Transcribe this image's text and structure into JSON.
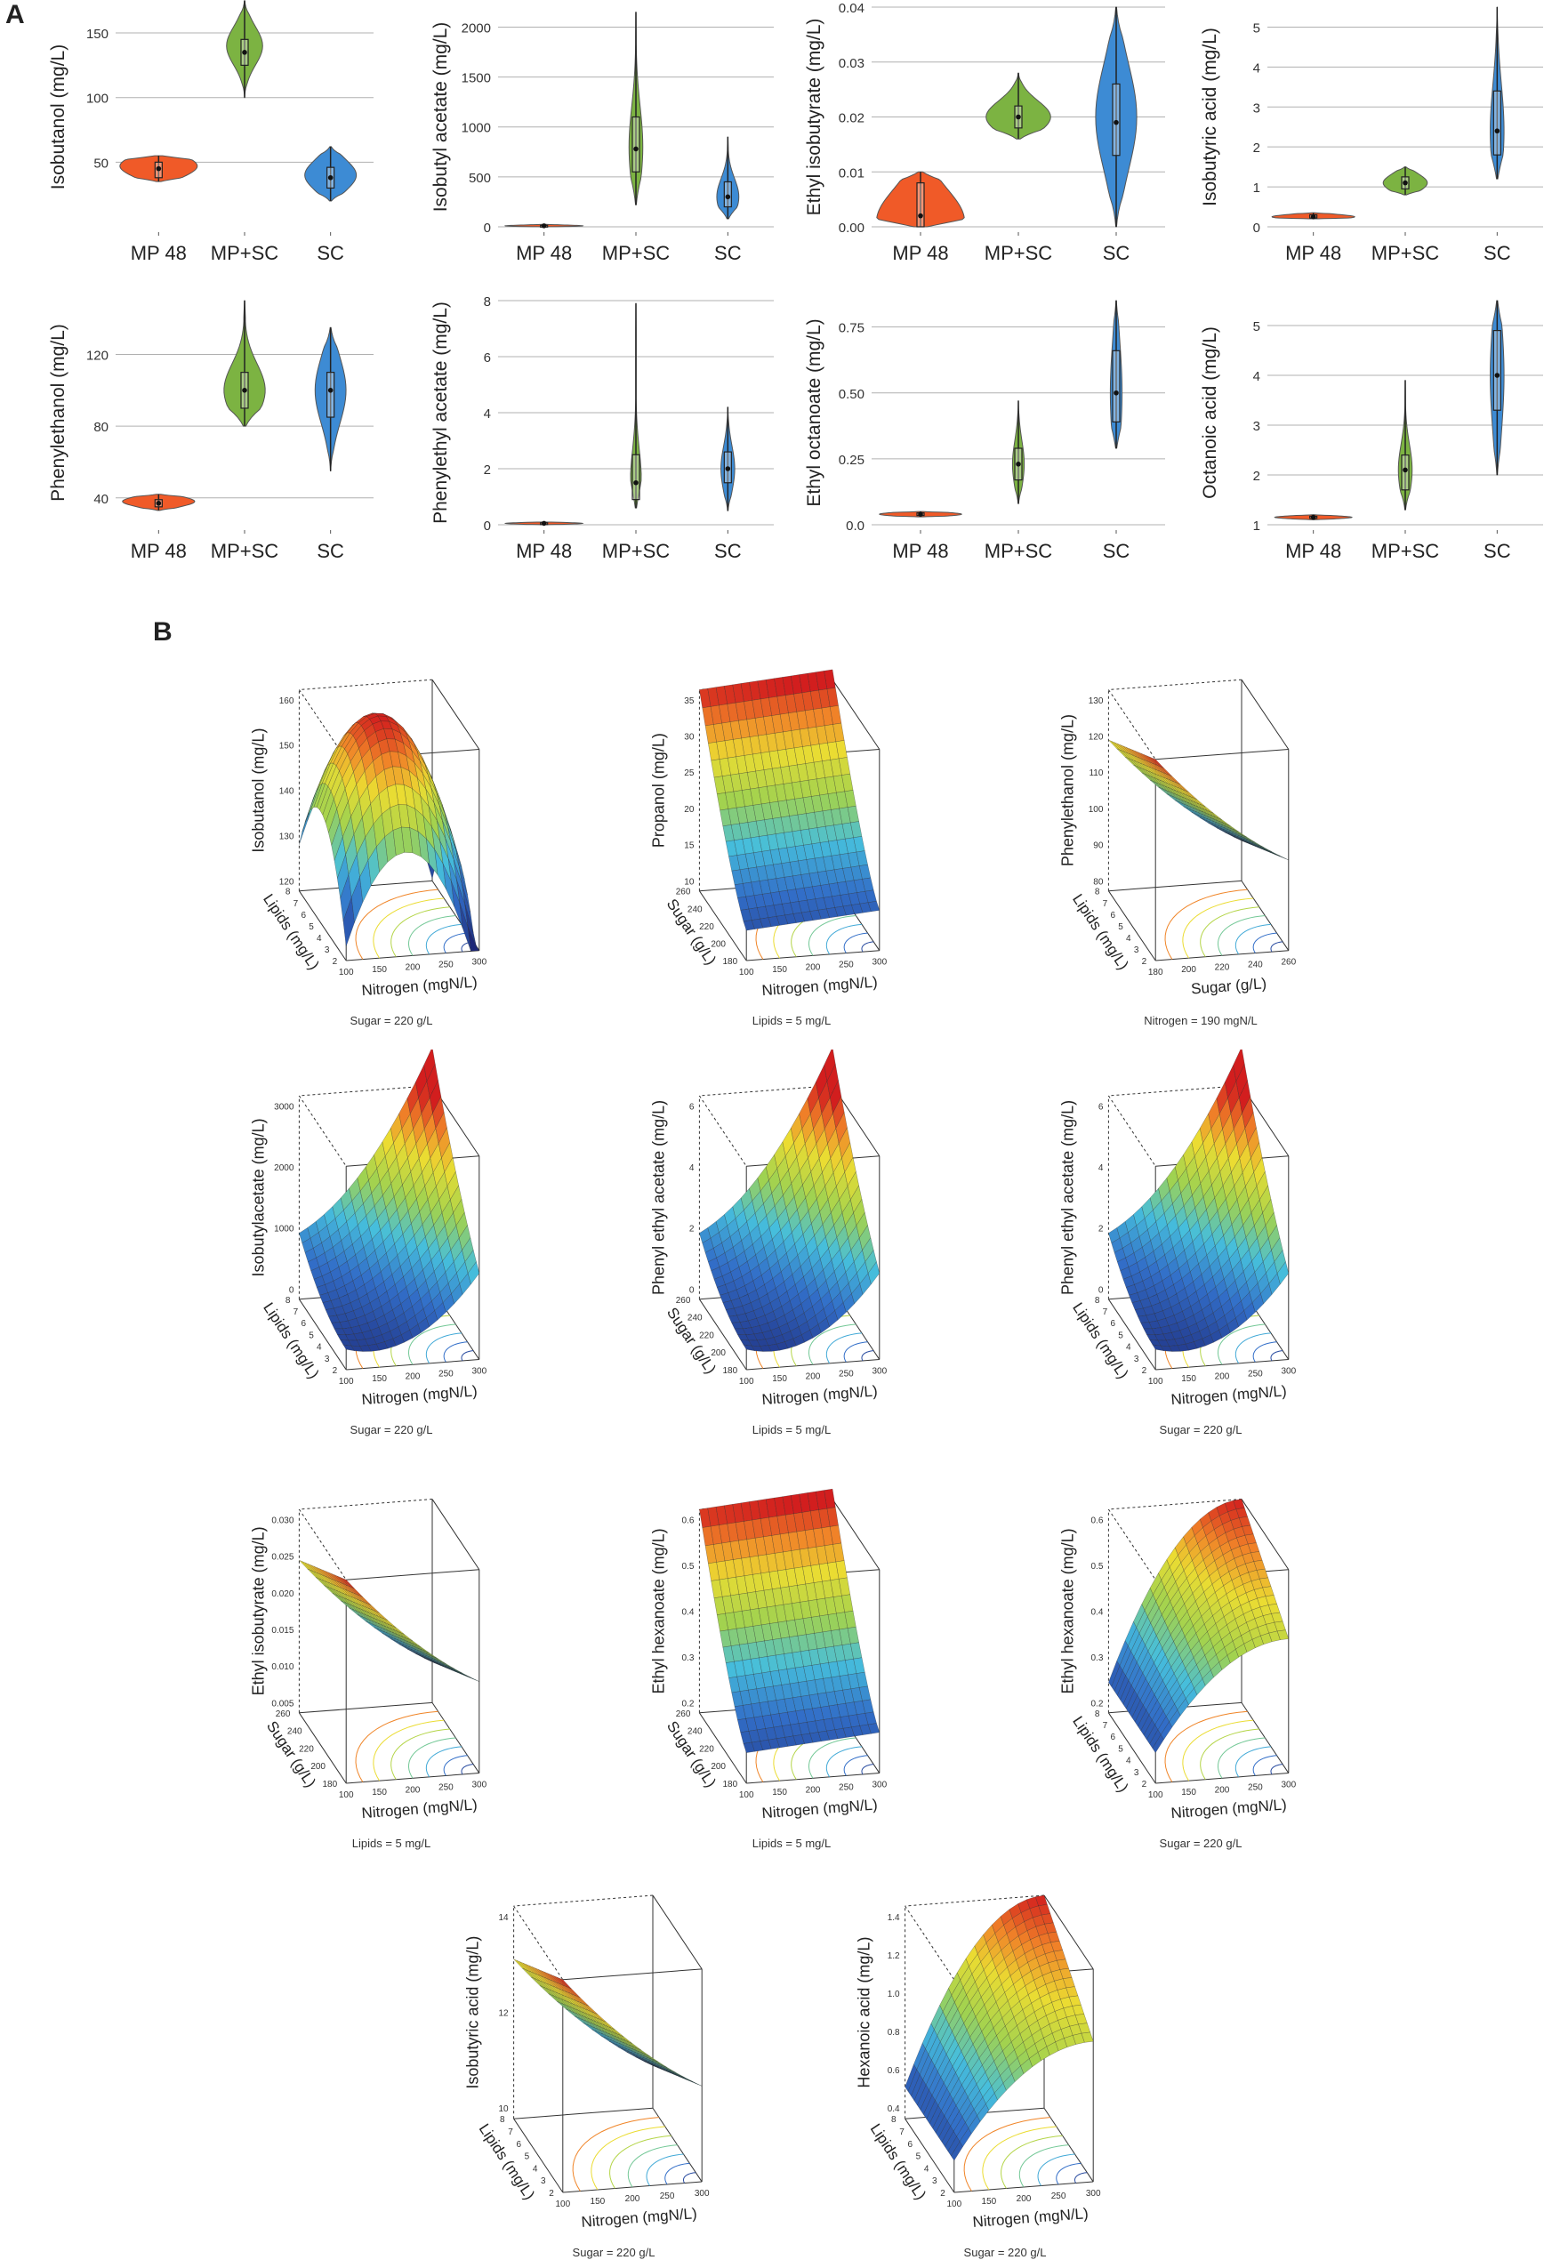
{
  "figure": {
    "panel_a": "A",
    "panel_b": "B"
  },
  "colors": {
    "mp48": "#f05a28",
    "mpsc": "#7cb342",
    "sc": "#3d8bd4",
    "grid": "#b0b0b0"
  },
  "chart_data": [
    {
      "type": "violin",
      "id": "isobutanol",
      "ylabel": "Isobutanol (mg/L)",
      "categories": [
        "MP 48",
        "MP+SC",
        "SC"
      ],
      "ylim": [
        0,
        170
      ],
      "yticks": [
        {
          "v": 50,
          "t": "50"
        },
        {
          "v": 100,
          "t": "100"
        },
        {
          "v": 150,
          "t": "150"
        }
      ],
      "groups": [
        {
          "median": 45,
          "q1": 38,
          "q3": 50,
          "min": 35,
          "max": 55,
          "w": 0.3,
          "mode": 47
        },
        {
          "median": 135,
          "q1": 125,
          "q3": 145,
          "min": 100,
          "max": 175,
          "w": 0.14,
          "mode": 140
        },
        {
          "median": 38,
          "q1": 30,
          "q3": 46,
          "min": 20,
          "max": 62,
          "w": 0.2,
          "mode": 40
        }
      ]
    },
    {
      "type": "violin",
      "id": "isobutylacetate",
      "ylabel": "Isobutyl acetate (mg/L)",
      "categories": [
        "MP 48",
        "MP+SC",
        "SC"
      ],
      "ylim": [
        0,
        2200
      ],
      "yticks": [
        {
          "v": 0,
          "t": "0"
        },
        {
          "v": 500,
          "t": "500"
        },
        {
          "v": 1000,
          "t": "1000"
        },
        {
          "v": 1500,
          "t": "1500"
        },
        {
          "v": 2000,
          "t": "2000"
        }
      ],
      "groups": [
        {
          "median": 10,
          "q1": 5,
          "q3": 15,
          "min": 0,
          "max": 25,
          "w": 0.28,
          "mode": 10
        },
        {
          "median": 780,
          "q1": 550,
          "q3": 1100,
          "min": 220,
          "max": 2150,
          "w": 0.05,
          "mode": 800
        },
        {
          "median": 300,
          "q1": 200,
          "q3": 450,
          "min": 80,
          "max": 900,
          "w": 0.08,
          "mode": 300
        }
      ]
    },
    {
      "type": "violin",
      "id": "ethylisobutyrate",
      "ylabel": "Ethyl isobutyrate (mg/L)",
      "categories": [
        "MP 48",
        "MP+SC",
        "SC"
      ],
      "ylim": [
        0,
        0.04
      ],
      "yticks": [
        {
          "v": 0,
          "t": "0.00"
        },
        {
          "v": 0.01,
          "t": "0.01"
        },
        {
          "v": 0.02,
          "t": "0.02"
        },
        {
          "v": 0.03,
          "t": "0.03"
        },
        {
          "v": 0.04,
          "t": "0.04"
        }
      ],
      "groups": [
        {
          "median": 0.002,
          "q1": 0.0,
          "q3": 0.008,
          "min": 0.0,
          "max": 0.01,
          "w": 0.3,
          "mode": 0.001
        },
        {
          "median": 0.02,
          "q1": 0.018,
          "q3": 0.022,
          "min": 0.016,
          "max": 0.028,
          "w": 0.22,
          "mode": 0.02
        },
        {
          "median": 0.019,
          "q1": 0.013,
          "q3": 0.026,
          "min": 0.0,
          "max": 0.04,
          "w": 0.14,
          "mode": 0.02
        }
      ]
    },
    {
      "type": "violin",
      "id": "isobutyricacid",
      "ylabel": "Isobutyric acid (mg/L)",
      "categories": [
        "MP 48",
        "MP+SC",
        "SC"
      ],
      "ylim": [
        0,
        5.5
      ],
      "yticks": [
        {
          "v": 0,
          "t": "0"
        },
        {
          "v": 1,
          "t": "1"
        },
        {
          "v": 2,
          "t": "2"
        },
        {
          "v": 3,
          "t": "3"
        },
        {
          "v": 4,
          "t": "4"
        },
        {
          "v": 5,
          "t": "5"
        }
      ],
      "groups": [
        {
          "median": 0.25,
          "q1": 0.22,
          "q3": 0.3,
          "min": 0.2,
          "max": 0.35,
          "w": 0.3,
          "mode": 0.25
        },
        {
          "median": 1.1,
          "q1": 0.95,
          "q3": 1.25,
          "min": 0.8,
          "max": 1.5,
          "w": 0.16,
          "mode": 1.1
        },
        {
          "median": 2.4,
          "q1": 1.8,
          "q3": 3.4,
          "min": 1.2,
          "max": 5.5,
          "w": 0.05,
          "mode": 2.4
        }
      ]
    },
    {
      "type": "violin",
      "id": "phenylethanol",
      "ylabel": "Phenylethanol (mg/L)",
      "categories": [
        "MP 48",
        "MP+SC",
        "SC"
      ],
      "ylim": [
        25,
        150
      ],
      "yticks": [
        {
          "v": 40,
          "t": "40"
        },
        {
          "v": 80,
          "t": "80"
        },
        {
          "v": 120,
          "t": "120"
        }
      ],
      "groups": [
        {
          "median": 37,
          "q1": 35,
          "q3": 39,
          "min": 33,
          "max": 42,
          "w": 0.28,
          "mode": 38
        },
        {
          "median": 100,
          "q1": 90,
          "q3": 110,
          "min": 80,
          "max": 150,
          "w": 0.16,
          "mode": 100
        },
        {
          "median": 100,
          "q1": 85,
          "q3": 110,
          "min": 55,
          "max": 135,
          "w": 0.12,
          "mode": 100
        }
      ]
    },
    {
      "type": "violin",
      "id": "phenylethylacetate",
      "ylabel": "Phenylethyl acetate (mg/L)",
      "categories": [
        "MP 48",
        "MP+SC",
        "SC"
      ],
      "ylim": [
        0,
        8
      ],
      "yticks": [
        {
          "v": 0,
          "t": "0"
        },
        {
          "v": 2,
          "t": "2"
        },
        {
          "v": 4,
          "t": "4"
        },
        {
          "v": 6,
          "t": "6"
        },
        {
          "v": 8,
          "t": "8"
        }
      ],
      "groups": [
        {
          "median": 0.05,
          "q1": 0.03,
          "q3": 0.07,
          "min": 0.0,
          "max": 0.1,
          "w": 0.28,
          "mode": 0.05
        },
        {
          "median": 1.5,
          "q1": 0.9,
          "q3": 2.5,
          "min": 0.6,
          "max": 7.9,
          "w": 0.04,
          "mode": 1.5
        },
        {
          "median": 2.0,
          "q1": 1.5,
          "q3": 2.6,
          "min": 0.5,
          "max": 4.2,
          "w": 0.05,
          "mode": 2.0
        }
      ]
    },
    {
      "type": "violin",
      "id": "ethyloctanoate",
      "ylabel": "Ethyl octanoate (mg/L)",
      "categories": [
        "MP 48",
        "MP+SC",
        "SC"
      ],
      "ylim": [
        0,
        0.85
      ],
      "yticks": [
        {
          "v": 0,
          "t": "0.0"
        },
        {
          "v": 0.25,
          "t": "0.25"
        },
        {
          "v": 0.5,
          "t": "0.50"
        },
        {
          "v": 0.75,
          "t": "0.75"
        }
      ],
      "groups": [
        {
          "median": 0.04,
          "q1": 0.035,
          "q3": 0.045,
          "min": 0.03,
          "max": 0.05,
          "w": 0.28,
          "mode": 0.04
        },
        {
          "median": 0.23,
          "q1": 0.17,
          "q3": 0.29,
          "min": 0.08,
          "max": 0.47,
          "w": 0.04,
          "mode": 0.23
        },
        {
          "median": 0.5,
          "q1": 0.39,
          "q3": 0.66,
          "min": 0.29,
          "max": 0.85,
          "w": 0.04,
          "mode": 0.5
        }
      ]
    },
    {
      "type": "violin",
      "id": "octanoicacid",
      "ylabel": "Octanoic acid (mg/L)",
      "categories": [
        "MP 48",
        "MP+SC",
        "SC"
      ],
      "ylim": [
        1,
        5.5
      ],
      "yticks": [
        {
          "v": 1,
          "t": "1"
        },
        {
          "v": 2,
          "t": "2"
        },
        {
          "v": 3,
          "t": "3"
        },
        {
          "v": 4,
          "t": "4"
        },
        {
          "v": 5,
          "t": "5"
        }
      ],
      "groups": [
        {
          "median": 1.15,
          "q1": 1.13,
          "q3": 1.17,
          "min": 1.1,
          "max": 1.2,
          "w": 0.28,
          "mode": 1.15
        },
        {
          "median": 2.1,
          "q1": 1.7,
          "q3": 2.4,
          "min": 1.3,
          "max": 3.9,
          "w": 0.05,
          "mode": 2.1
        },
        {
          "median": 4.0,
          "q1": 3.3,
          "q3": 4.9,
          "min": 2.0,
          "max": 5.5,
          "w": 0.05,
          "mode": 4.0
        }
      ]
    },
    {
      "type": "surface",
      "id": "s_isobutanol",
      "zlabel": "Isobutanol (mg/L)",
      "xlabel": "Nitrogen (mgN/L)",
      "ylabel": "Lipids (mg/L)",
      "note": "Sugar = 220 g/L",
      "xticks": [
        "100",
        "150",
        "200",
        "250",
        "300"
      ],
      "yticks": [
        "2",
        "3",
        "4",
        "5",
        "6",
        "7",
        "8"
      ],
      "zticks": [
        "120",
        "130",
        "140",
        "150",
        "160"
      ],
      "shape": "dome"
    },
    {
      "type": "surface",
      "id": "s_propanol",
      "zlabel": "Propanol (mg/L)",
      "xlabel": "Nitrogen (mgN/L)",
      "ylabel": "Sugar (g/L)",
      "note": "Lipids = 5 mg/L",
      "xticks": [
        "100",
        "150",
        "200",
        "250",
        "300"
      ],
      "yticks": [
        "180",
        "200",
        "220",
        "240",
        "260"
      ],
      "zticks": [
        "10",
        "15",
        "20",
        "25",
        "30",
        "35"
      ],
      "shape": "rise"
    },
    {
      "type": "surface",
      "id": "s_phenylethanol",
      "zlabel": "Phenylethanol (mg/L)",
      "xlabel": "Sugar (g/L)",
      "ylabel": "Lipids (mg/L)",
      "note": "Nitrogen = 190 mgN/L",
      "xticks": [
        "180",
        "200",
        "220",
        "240",
        "260"
      ],
      "yticks": [
        "2",
        "3",
        "4",
        "5",
        "6",
        "7",
        "8"
      ],
      "zticks": [
        "80",
        "90",
        "100",
        "110",
        "120",
        "130"
      ],
      "shape": "fall"
    },
    {
      "type": "surface",
      "id": "s_isobutylacetate",
      "zlabel": "Isobutylacetate (mg/L)",
      "xlabel": "Nitrogen (mgN/L)",
      "ylabel": "Lipids (mg/L)",
      "note": "Sugar = 220 g/L",
      "xticks": [
        "100",
        "150",
        "200",
        "250",
        "300"
      ],
      "yticks": [
        "2",
        "3",
        "4",
        "5",
        "6",
        "7",
        "8"
      ],
      "zticks": [
        "0",
        "1000",
        "2000",
        "3000"
      ],
      "shape": "bowl"
    },
    {
      "type": "surface",
      "id": "s_phenylethylacetate1",
      "zlabel": "Phenyl ethyl acetate (mg/L)",
      "xlabel": "Nitrogen (mgN/L)",
      "ylabel": "Sugar (g/L)",
      "note": "Lipids = 5 mg/L",
      "xticks": [
        "100",
        "150",
        "200",
        "250",
        "300"
      ],
      "yticks": [
        "180",
        "200",
        "220",
        "240",
        "260"
      ],
      "zticks": [
        "0",
        "2",
        "4",
        "6"
      ],
      "shape": "bowl"
    },
    {
      "type": "surface",
      "id": "s_phenylethylacetate2",
      "zlabel": "Phenyl ethyl acetate (mg/L)",
      "xlabel": "Nitrogen (mgN/L)",
      "ylabel": "Lipids (mg/L)",
      "note": "Sugar = 220 g/L",
      "xticks": [
        "100",
        "150",
        "200",
        "250",
        "300"
      ],
      "yticks": [
        "2",
        "3",
        "4",
        "5",
        "6",
        "7",
        "8"
      ],
      "zticks": [
        "0",
        "2",
        "4",
        "6"
      ],
      "shape": "bowl"
    },
    {
      "type": "surface",
      "id": "s_ethylisobutyrate",
      "zlabel": "Ethyl isobutyrate (mg/L)",
      "xlabel": "Nitrogen (mgN/L)",
      "ylabel": "Sugar (g/L)",
      "note": "Lipids = 5 mg/L",
      "xticks": [
        "100",
        "150",
        "200",
        "250",
        "300"
      ],
      "yticks": [
        "180",
        "200",
        "220",
        "240",
        "260"
      ],
      "zticks": [
        "0.005",
        "0.010",
        "0.015",
        "0.020",
        "0.025",
        "0.030"
      ],
      "shape": "fall"
    },
    {
      "type": "surface",
      "id": "s_ethylhexanoate1",
      "zlabel": "Ethyl hexanoate (mg/L)",
      "xlabel": "Nitrogen (mgN/L)",
      "ylabel": "Sugar (g/L)",
      "note": "Lipids = 5 mg/L",
      "xticks": [
        "100",
        "150",
        "200",
        "250",
        "300"
      ],
      "yticks": [
        "180",
        "200",
        "220",
        "240",
        "260"
      ],
      "zticks": [
        "0.2",
        "0.3",
        "0.4",
        "0.5",
        "0.6"
      ],
      "shape": "rise"
    },
    {
      "type": "surface",
      "id": "s_ethylhexanoate2",
      "zlabel": "Ethyl hexanoate (mg/L)",
      "xlabel": "Nitrogen (mgN/L)",
      "ylabel": "Lipids (mg/L)",
      "note": "Sugar = 220 g/L",
      "xticks": [
        "100",
        "150",
        "200",
        "250",
        "300"
      ],
      "yticks": [
        "2",
        "3",
        "4",
        "5",
        "6",
        "7",
        "8"
      ],
      "zticks": [
        "0.2",
        "0.3",
        "0.4",
        "0.5",
        "0.6"
      ],
      "shape": "saddle"
    },
    {
      "type": "surface",
      "id": "s_isobutyricacid",
      "zlabel": "Isobutyric acid (mg/L)",
      "xlabel": "Nitrogen (mgN/L)",
      "ylabel": "Lipids (mg/L)",
      "note": "Sugar = 220 g/L",
      "xticks": [
        "100",
        "150",
        "200",
        "250",
        "300"
      ],
      "yticks": [
        "2",
        "3",
        "4",
        "5",
        "6",
        "7",
        "8"
      ],
      "zticks": [
        "10",
        "12",
        "14"
      ],
      "shape": "fall"
    },
    {
      "type": "surface",
      "id": "s_hexanoicacid",
      "zlabel": "Hexanoic acid (mg/L)",
      "xlabel": "Nitrogen (mgN/L)",
      "ylabel": "Lipids (mg/L)",
      "note": "Sugar = 220 g/L",
      "xticks": [
        "100",
        "150",
        "200",
        "250",
        "300"
      ],
      "yticks": [
        "2",
        "3",
        "4",
        "5",
        "6",
        "7",
        "8"
      ],
      "zticks": [
        "0.4",
        "0.6",
        "0.8",
        "1.0",
        "1.2",
        "1.4"
      ],
      "shape": "saddle"
    }
  ]
}
